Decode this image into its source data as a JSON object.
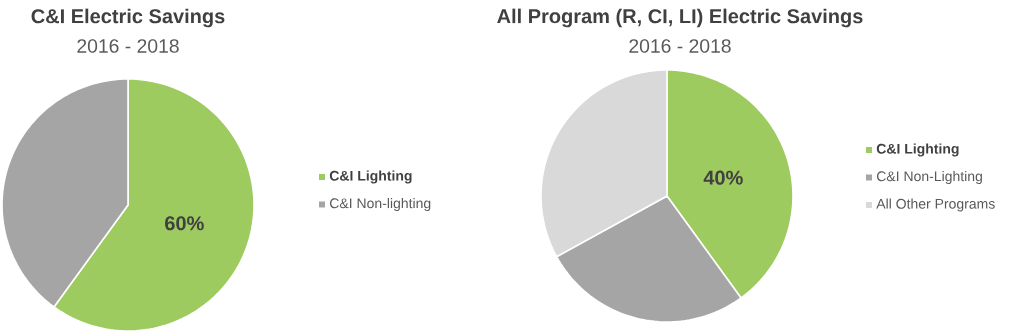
{
  "chart_data": [
    {
      "type": "pie",
      "title": "C&I Electric Savings",
      "subtitle": "2016 - 2018",
      "categories": [
        "C&I Lighting",
        "C&I Non-lighting"
      ],
      "values": [
        60,
        40
      ],
      "colors": [
        "#9ecb5f",
        "#a5a5a5"
      ],
      "value_labels": [
        "60%",
        null
      ],
      "legend": "right"
    },
    {
      "type": "pie",
      "title": "All Program (R, CI, LI) Electric Savings",
      "subtitle": "2016 - 2018",
      "categories": [
        "C&I Lighting",
        "C&I Non-Lighting",
        "All Other Programs"
      ],
      "values": [
        40,
        27,
        33
      ],
      "colors": [
        "#9ecb5f",
        "#a5a5a5",
        "#d9d9d9"
      ],
      "value_labels": [
        "40%",
        null,
        null
      ],
      "legend": "right"
    }
  ]
}
